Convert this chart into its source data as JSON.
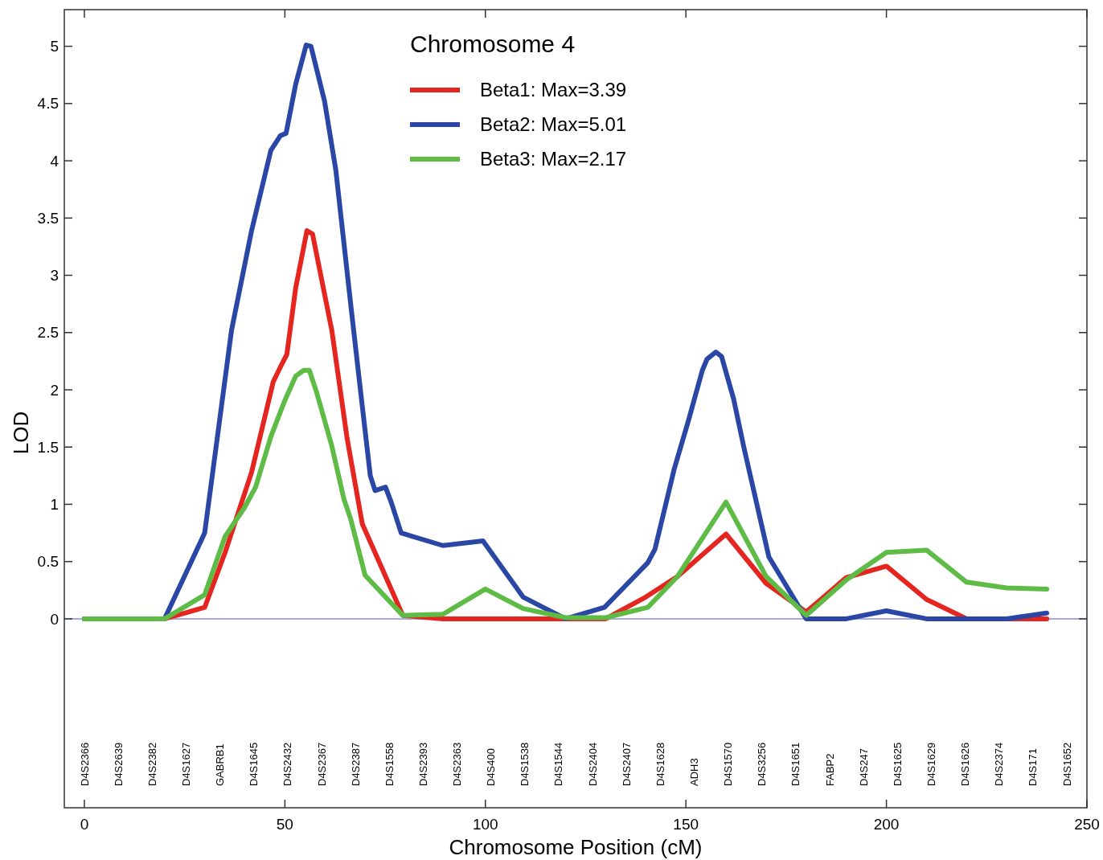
{
  "chart_data": {
    "type": "line",
    "legend_title": "Chromosome 4",
    "xlabel": "Chromosome Position (cM)",
    "ylabel": "LOD",
    "xlim": [
      -5,
      250
    ],
    "xticks": [
      0,
      50,
      100,
      150,
      200,
      250
    ],
    "ylim": [
      -1.65,
      5.32
    ],
    "yticks": [
      0,
      0.5,
      1,
      1.5,
      2,
      2.5,
      3,
      3.5,
      4,
      4.5,
      5
    ],
    "grid": false,
    "legend": "top",
    "line_style": "solid",
    "marker": "none",
    "ref_lines": [
      {
        "axis": "y",
        "value": 0,
        "color": "#8a8ee0"
      }
    ],
    "series": [
      {
        "name": "Beta1: Max=3.39",
        "color": "#e52620",
        "x": [
          0,
          20,
          30,
          35.1,
          41.7,
          47.1,
          48.9,
          50.5,
          52.7,
          55.5,
          56.9,
          61.7,
          65.5,
          69.3,
          74.1,
          79.4,
          89.4,
          100,
          110,
          120,
          130,
          140,
          147.9,
          160,
          170,
          180,
          190,
          200,
          210,
          220,
          230,
          240
        ],
        "values": [
          0,
          0,
          0.1,
          0.58,
          1.28,
          2.07,
          2.2,
          2.31,
          2.89,
          3.39,
          3.36,
          2.52,
          1.58,
          0.83,
          0.45,
          0.03,
          0,
          0,
          0,
          0,
          0,
          0.19,
          0.37,
          0.74,
          0.31,
          0.06,
          0.36,
          0.46,
          0.17,
          0,
          0,
          0
        ]
      },
      {
        "name": "Beta2: Max=5.01",
        "color": "#2b47a6",
        "x": [
          0,
          20,
          30,
          36.7,
          41.7,
          46.5,
          48.9,
          50.3,
          52.7,
          55.3,
          56.5,
          59.9,
          62.7,
          66.5,
          68.9,
          71.3,
          72.5,
          75.1,
          76.5,
          79,
          89.4,
          99.4,
          109.4,
          120,
          129.7,
          140.5,
          142.3,
          147.1,
          150.7,
          154.1,
          155.3,
          157.5,
          158.9,
          161.9,
          164.5,
          170.7,
          180,
          190,
          200,
          210,
          220,
          230,
          240
        ],
        "values": [
          0,
          0,
          0.75,
          2.52,
          3.39,
          4.09,
          4.22,
          4.24,
          4.67,
          5.01,
          5.0,
          4.52,
          3.92,
          2.72,
          1.98,
          1.25,
          1.12,
          1.15,
          1.02,
          0.75,
          0.64,
          0.68,
          0.19,
          0,
          0.1,
          0.49,
          0.61,
          1.31,
          1.74,
          2.17,
          2.27,
          2.33,
          2.29,
          1.92,
          1.49,
          0.54,
          0,
          0,
          0.07,
          0,
          0,
          0,
          0.05
        ]
      },
      {
        "name": "Beta3: Max=2.17",
        "color": "#5dbb46",
        "x": [
          0,
          20,
          30,
          35.1,
          39.9,
          42.7,
          46.5,
          49.9,
          52.7,
          54.7,
          56.1,
          57.9,
          61.7,
          64.7,
          66.5,
          70,
          79.4,
          89.4,
          100,
          109.4,
          120,
          130,
          140.5,
          147.9,
          160,
          170,
          180,
          190,
          200,
          210,
          220,
          230,
          240
        ],
        "values": [
          0,
          0,
          0.21,
          0.72,
          0.97,
          1.15,
          1.59,
          1.9,
          2.12,
          2.17,
          2.17,
          1.98,
          1.51,
          1.05,
          0.86,
          0.38,
          0.03,
          0.04,
          0.26,
          0.09,
          0.01,
          0.01,
          0.1,
          0.37,
          1.02,
          0.37,
          0.03,
          0.34,
          0.58,
          0.6,
          0.32,
          0.27,
          0.26
        ]
      }
    ],
    "annotations": [
      "D4S2366",
      "D4S2639",
      "D4S2382",
      "D4S1627",
      "GABRB1",
      "D4S1645",
      "D4S2432",
      "D4S2367",
      "D4S2387",
      "D4S1558",
      "D4S2393",
      "D4S2363",
      "D4S400",
      "D4S1538",
      "D4S1544",
      "D4S2404",
      "D4S2407",
      "D4S1628",
      "ADH3",
      "D4S1570",
      "D4S3256",
      "D4S1651",
      "FABP2",
      "D4S247",
      "D4S1625",
      "D4S1629",
      "D4S1626",
      "D4S2374",
      "D4S171",
      "D4S1652"
    ]
  }
}
